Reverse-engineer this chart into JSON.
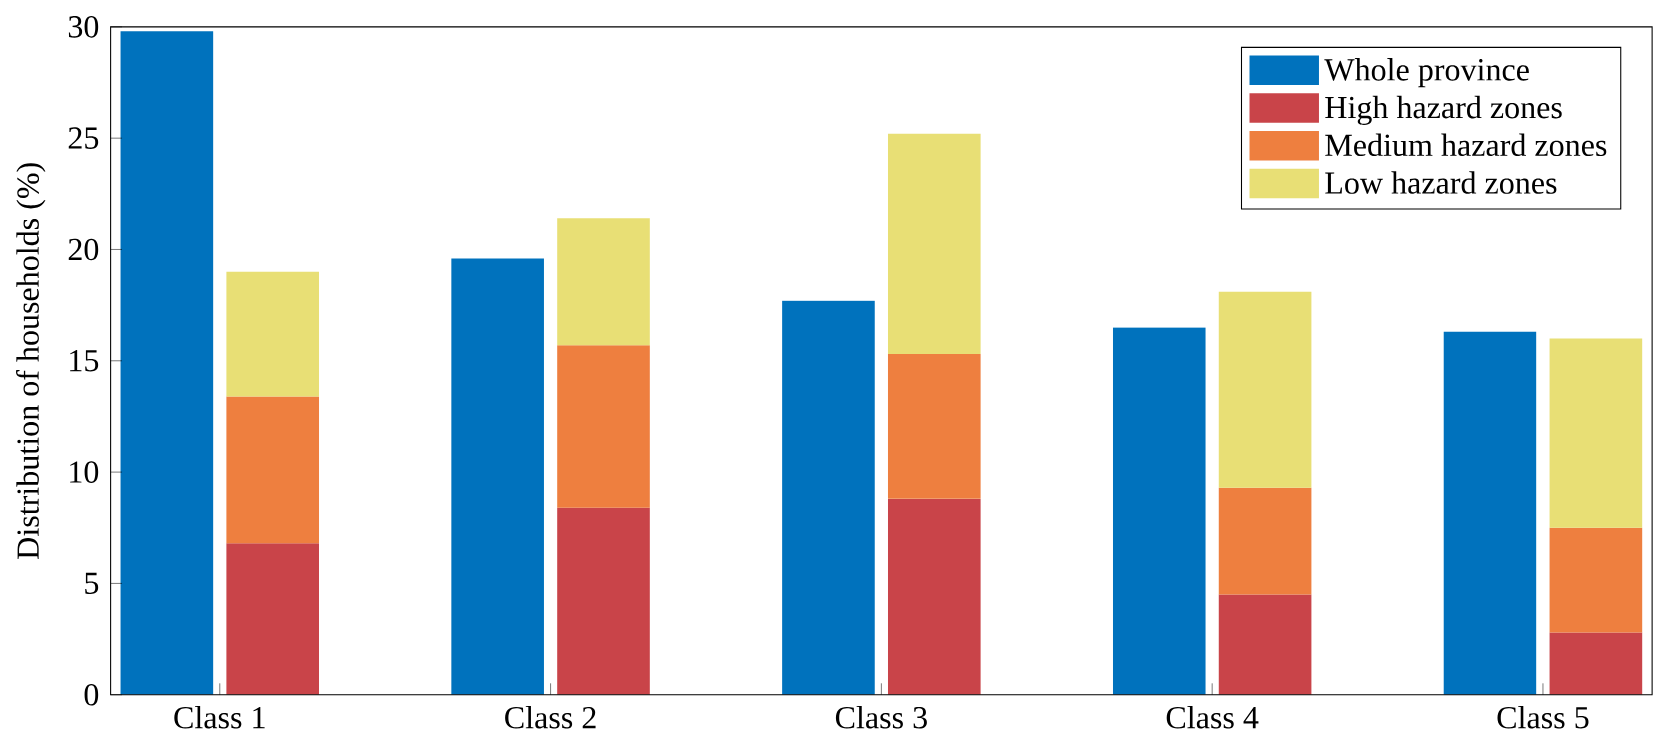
{
  "chart_data": {
    "type": "bar",
    "ylabel": "Distribution of households (%)",
    "categories": [
      "Class 1",
      "Class 2",
      "Class 3",
      "Class 4",
      "Class 5"
    ],
    "series": [
      {
        "name": "Whole province",
        "color": "#0072bd",
        "values": [
          29.8,
          19.6,
          17.7,
          16.5,
          16.3
        ]
      },
      {
        "name": "High hazard zones",
        "color": "#c94449",
        "base": [
          0,
          0,
          0,
          0,
          0
        ],
        "values": [
          6.8,
          8.4,
          8.8,
          4.5,
          2.8
        ]
      },
      {
        "name": "Medium hazard zones",
        "color": "#ee7f3f",
        "base": [
          6.8,
          8.4,
          8.8,
          4.5,
          2.8
        ],
        "values": [
          6.6,
          7.3,
          6.5,
          4.8,
          4.7
        ]
      },
      {
        "name": "Low hazard zones",
        "color": "#e8df75",
        "base": [
          13.4,
          15.7,
          15.3,
          9.3,
          7.5
        ],
        "values": [
          5.6,
          5.7,
          9.9,
          8.8,
          8.5
        ]
      }
    ],
    "ylim": [
      0,
      30
    ],
    "yticks": [
      0,
      5,
      10,
      15,
      20,
      25,
      30
    ],
    "grid": false,
    "legend": "top right"
  }
}
